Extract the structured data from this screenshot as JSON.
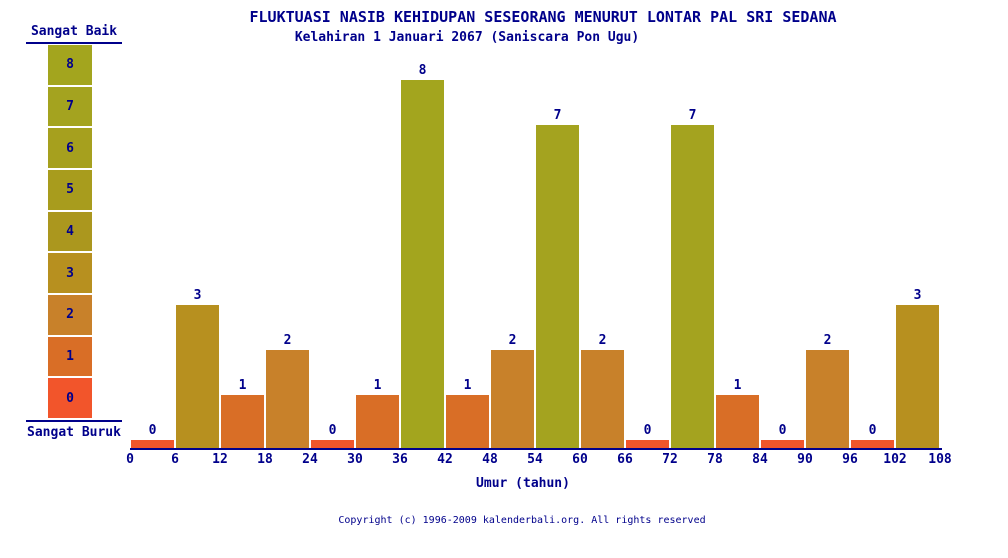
{
  "header": {
    "title": "FLUKTUASI NASIB KEHIDUPAN SESEORANG MENURUT LONTAR PAL SRI SEDANA",
    "subtitle": "Kelahiran 1 Januari 2067 (Saniscara Pon Ugu)"
  },
  "legend": {
    "top_label": "Sangat Baik",
    "bottom_label": "Sangat Buruk",
    "scale_values": [
      8,
      7,
      6,
      5,
      4,
      3,
      2,
      1,
      0
    ]
  },
  "chart_data": {
    "type": "bar",
    "title": "FLUKTUASI NASIB KEHIDUPAN SESEORANG MENURUT LONTAR PAL SRI SEDANA",
    "subtitle": "Kelahiran 1 Januari 2067 (Saniscara Pon Ugu)",
    "xlabel": "Umur (tahun)",
    "ylabel": "",
    "x_ticks": [
      "0",
      "6",
      "12",
      "18",
      "24",
      "30",
      "36",
      "42",
      "48",
      "54",
      "60",
      "66",
      "72",
      "78",
      "84",
      "90",
      "96",
      "102",
      "108"
    ],
    "categories": [
      "0-6",
      "6-12",
      "12-18",
      "18-24",
      "24-30",
      "30-36",
      "36-42",
      "42-48",
      "48-54",
      "54-60",
      "60-66",
      "66-72",
      "72-78",
      "78-84",
      "84-90",
      "90-96",
      "96-102",
      "102-108"
    ],
    "values": [
      0,
      3,
      1,
      2,
      0,
      1,
      8,
      1,
      2,
      7,
      2,
      0,
      7,
      1,
      0,
      2,
      0,
      3
    ],
    "ylim": [
      0,
      8
    ],
    "grid": false,
    "legend_position": "left",
    "bar_colors_by_value": {
      "0": "#F2552B",
      "1": "#D96E26",
      "2": "#C8812A",
      "3": "#B7901F",
      "4": "#AB971E",
      "5": "#A89C1D",
      "6": "#A6A01E",
      "7": "#A4A31F",
      "8": "#A3A51E"
    }
  },
  "footer": {
    "copyright": "Copyright (c) 1996-2009 kalenderbali.org. All rights reserved"
  },
  "colors": {
    "text": "#00008B",
    "axis": "#00008B",
    "background": "#FFFFFF"
  }
}
